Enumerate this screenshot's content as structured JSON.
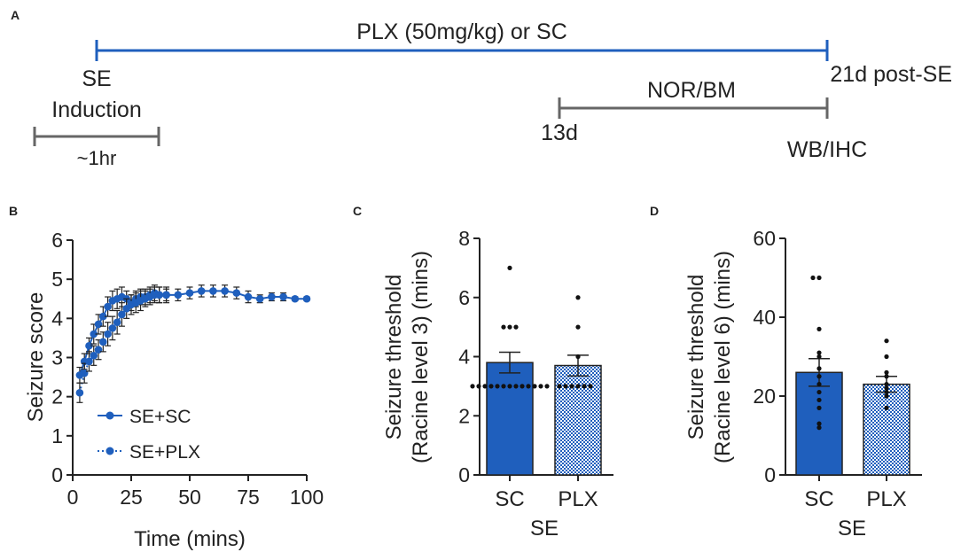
{
  "panels": {
    "a": "A",
    "b": "B",
    "c": "C",
    "d": "D"
  },
  "timeline": {
    "main_label": "PLX (50mg/kg) or SC",
    "start_label_1": "SE",
    "start_label_2": "Induction",
    "end_label": "21d post-SE",
    "induction_duration": "~1hr",
    "test_label": "NOR/BM",
    "test_start": "13d",
    "end_assay": "WB/IHC",
    "colors": {
      "treatment": "#1f5fbd",
      "bars": "#666666"
    }
  },
  "chart_data": [
    {
      "type": "line",
      "title": "",
      "xlabel": "Time (mins)",
      "ylabel": "Seizure score",
      "xlim": [
        0,
        100
      ],
      "ylim": [
        0,
        6
      ],
      "xticks": [
        "0",
        "25",
        "50",
        "75",
        "100"
      ],
      "yticks": [
        "0",
        "1",
        "2",
        "3",
        "4",
        "5",
        "6"
      ],
      "legend_position": "bottom-left",
      "color": "#1f5fbd",
      "series": [
        {
          "name": "SE+SC",
          "style": "solid",
          "x": [
            3,
            5,
            7,
            9,
            11,
            13,
            15,
            17,
            19,
            21,
            23,
            25,
            27,
            29,
            31,
            33,
            35,
            37,
            40,
            45,
            50,
            55,
            60,
            65,
            70,
            75,
            80,
            85,
            90,
            95,
            100
          ],
          "y": [
            2.55,
            2.9,
            3.3,
            3.6,
            3.85,
            4.05,
            4.3,
            4.45,
            4.5,
            4.55,
            4.5,
            4.4,
            4.5,
            4.55,
            4.55,
            4.6,
            4.65,
            4.6,
            4.6,
            4.6,
            4.65,
            4.7,
            4.7,
            4.7,
            4.65,
            4.55,
            4.5,
            4.55,
            4.55,
            4.5,
            4.5
          ],
          "err": [
            0.2,
            0.2,
            0.2,
            0.25,
            0.25,
            0.25,
            0.25,
            0.25,
            0.25,
            0.25,
            0.2,
            0.2,
            0.2,
            0.2,
            0.2,
            0.2,
            0.2,
            0.2,
            0.15,
            0.15,
            0.15,
            0.15,
            0.15,
            0.15,
            0.15,
            0.15,
            0.1,
            0.1,
            0.1,
            0.05,
            0.05
          ]
        },
        {
          "name": "SE+PLX",
          "style": "dotted",
          "x": [
            3,
            5,
            7,
            9,
            11,
            13,
            15,
            17,
            19,
            21,
            23,
            25,
            27,
            29,
            31,
            33,
            35,
            37,
            40
          ],
          "y": [
            2.1,
            2.6,
            2.9,
            3.05,
            3.2,
            3.4,
            3.6,
            3.75,
            3.9,
            4.1,
            4.25,
            4.35,
            4.4,
            4.45,
            4.5,
            4.55,
            4.6,
            4.6,
            4.6
          ],
          "err": [
            0.25,
            0.25,
            0.25,
            0.25,
            0.25,
            0.25,
            0.3,
            0.3,
            0.3,
            0.3,
            0.25,
            0.25,
            0.25,
            0.25,
            0.2,
            0.2,
            0.2,
            0.2,
            0.2
          ]
        }
      ]
    },
    {
      "type": "bar",
      "xlabel": "SE",
      "ylabel_line1": "Seizure threshold",
      "ylabel_line2": "(Racine level 3) (mins)",
      "categories": [
        "SC",
        "PLX"
      ],
      "values": [
        3.8,
        3.7
      ],
      "err": [
        0.35,
        0.35
      ],
      "ylim": [
        0,
        8
      ],
      "yticks": [
        "0",
        "2",
        "4",
        "6",
        "8"
      ],
      "points": [
        [
          3,
          3,
          3,
          3,
          3,
          3,
          3,
          3,
          3,
          3,
          3,
          3,
          3,
          5,
          5,
          5,
          7
        ],
        [
          3,
          3,
          3,
          3,
          3,
          3,
          4,
          5,
          6
        ]
      ],
      "bar_styles": [
        "solid",
        "checker"
      ]
    },
    {
      "type": "bar",
      "xlabel": "SE",
      "ylabel_line1": "Seizure threshold",
      "ylabel_line2": "(Racine level 6) (mins)",
      "categories": [
        "SC",
        "PLX"
      ],
      "values": [
        26,
        23
      ],
      "err": [
        3.5,
        2
      ],
      "ylim": [
        0,
        60
      ],
      "yticks": [
        "0",
        "20",
        "40",
        "60"
      ],
      "points": [
        [
          12,
          13,
          17,
          19,
          21,
          23,
          25,
          27,
          30,
          31,
          37,
          50,
          50
        ],
        [
          17,
          20,
          21,
          22,
          23,
          25,
          26,
          30,
          34
        ]
      ],
      "bar_styles": [
        "solid",
        "checker"
      ]
    }
  ]
}
